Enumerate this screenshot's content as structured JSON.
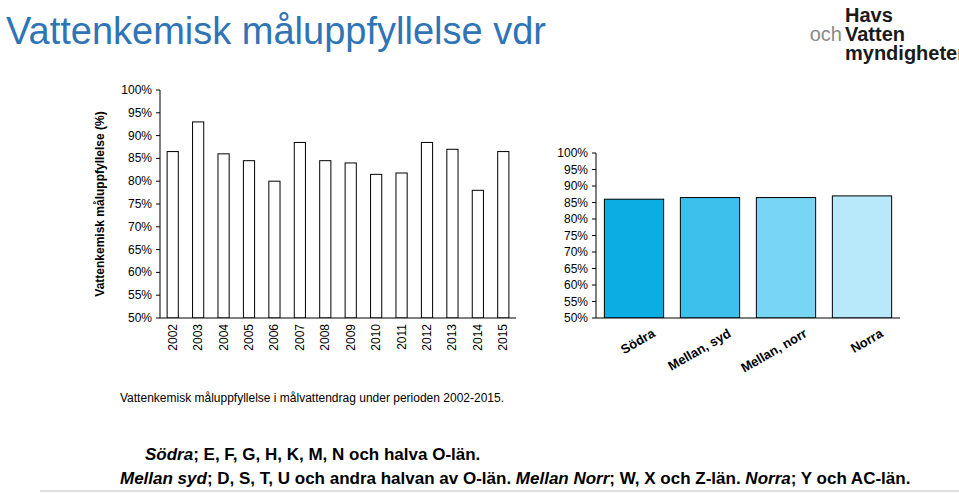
{
  "header": {
    "title": "Vattenkemisk måluppfyllelse vdr",
    "logo": [
      "Havs",
      "och",
      "Vatten",
      "myndigheten"
    ]
  },
  "chart_data": [
    {
      "type": "bar",
      "y_label": "Vattenkemisk måluppfyllelse (%)",
      "annotations": [
        "Vattenkemisk måluppfyllelse i målvattendrag under perioden 2002-2015."
      ],
      "categories": [
        "2002",
        "2003",
        "2004",
        "2005",
        "2006",
        "2007",
        "2008",
        "2009",
        "2010",
        "2011",
        "2012",
        "2013",
        "2014",
        "2015"
      ],
      "values": [
        86.5,
        93,
        86,
        84.5,
        80,
        88.5,
        84.5,
        84,
        81.5,
        81.8,
        88.5,
        87,
        78,
        86.5
      ],
      "color": "#ffffff",
      "ylim": [
        50,
        100
      ],
      "yticks": [
        {
          "value": 50,
          "label": "50%"
        },
        {
          "value": 55,
          "label": "55%"
        },
        {
          "value": 60,
          "label": "60%"
        },
        {
          "value": 65,
          "label": "65%"
        },
        {
          "value": 70,
          "label": "70%"
        },
        {
          "value": 75,
          "label": "75%"
        },
        {
          "value": 80,
          "label": "80%"
        },
        {
          "value": 85,
          "label": "85%"
        },
        {
          "value": 90,
          "label": "90%"
        },
        {
          "value": 95,
          "label": "95%"
        },
        {
          "value": 100,
          "label": "100%"
        }
      ],
      "grid": false
    },
    {
      "type": "bar",
      "categories": [
        "Södra",
        "Mellan, syd",
        "Mellan, norr",
        "Norra"
      ],
      "values": [
        86,
        86.5,
        86.5,
        87
      ],
      "colors": [
        "#0aaee2",
        "#3dc0ec",
        "#78d5f3",
        "#b8e9fa"
      ],
      "ylim": [
        50,
        100
      ],
      "yticks": [
        {
          "value": 50,
          "label": "50%"
        },
        {
          "value": 55,
          "label": "55%"
        },
        {
          "value": 60,
          "label": "60%"
        },
        {
          "value": 65,
          "label": "65%"
        },
        {
          "value": 70,
          "label": "70%"
        },
        {
          "value": 75,
          "label": "75%"
        },
        {
          "value": 80,
          "label": "80%"
        },
        {
          "value": 85,
          "label": "85%"
        },
        {
          "value": 90,
          "label": "90%"
        },
        {
          "value": 95,
          "label": "95%"
        },
        {
          "value": 100,
          "label": "100%"
        }
      ],
      "grid": false
    }
  ],
  "footnote": [
    [
      {
        "italic": "Södra"
      },
      {
        "plain": "; E, F, G, H, K, M, N och halva O-län."
      }
    ],
    [
      {
        "italic": "Mellan syd"
      },
      {
        "plain": "; D, S, T, U och andra halvan av O-län. "
      },
      {
        "italic": "Mellan Norr"
      },
      {
        "plain": "; W, X och Z-län. "
      },
      {
        "italic": "Norra"
      },
      {
        "plain": "; Y och AC-län."
      }
    ]
  ]
}
